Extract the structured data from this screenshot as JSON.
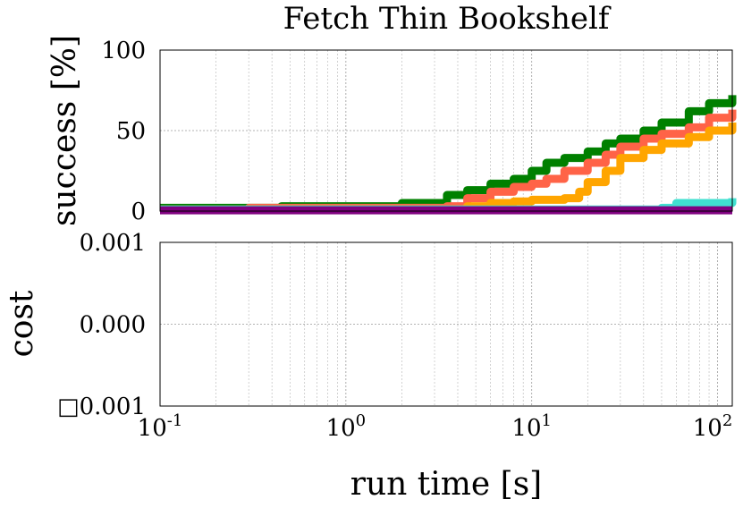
{
  "chart_data": [
    {
      "type": "line",
      "title": "Fetch Thin Bookshelf",
      "xlabel": "",
      "ylabel": "success [%]",
      "xscale": "log",
      "xlim": [
        0.1,
        120
      ],
      "ylim": [
        0,
        100
      ],
      "yticks": [
        "0",
        "50",
        "100"
      ],
      "grid": true,
      "series": [
        {
          "color": "#008000",
          "x": [
            0.1,
            0.45,
            1.3,
            2.0,
            3.5,
            4.5,
            6.0,
            8.0,
            10.0,
            12.0,
            15.0,
            20.0,
            25.0,
            30.0,
            40.0,
            50.0,
            70.0,
            90.0,
            120.0
          ],
          "values": [
            2,
            3,
            3,
            5,
            10,
            13,
            17,
            20,
            25,
            30,
            33,
            37,
            42,
            45,
            50,
            55,
            62,
            67,
            72
          ]
        },
        {
          "color": "#ff6347",
          "x": [
            0.1,
            0.3,
            2.0,
            3.5,
            4.5,
            6.0,
            8.0,
            10.0,
            12.0,
            15.0,
            20.0,
            25.0,
            30.0,
            40.0,
            50.0,
            70.0,
            90.0,
            120.0
          ],
          "values": [
            1,
            2,
            2,
            3,
            8,
            12,
            15,
            17,
            20,
            25,
            30,
            35,
            40,
            45,
            48,
            52,
            58,
            63
          ]
        },
        {
          "color": "#ffa500",
          "x": [
            0.1,
            3.5,
            4.5,
            6.0,
            8.0,
            10.0,
            15.0,
            18.0,
            20.0,
            25.0,
            30.0,
            40.0,
            50.0,
            70.0,
            90.0,
            120.0
          ],
          "values": [
            1,
            1,
            3,
            5,
            6,
            7,
            8,
            12,
            18,
            25,
            33,
            38,
            42,
            46,
            50,
            55
          ]
        },
        {
          "color": "#40e0d0",
          "x": [
            0.1,
            40.0,
            50.0,
            60.0,
            120.0
          ],
          "values": [
            1,
            1,
            2,
            5,
            8
          ]
        },
        {
          "color": "#800080",
          "x": [
            0.1,
            120.0
          ],
          "values": [
            0.5,
            0.5
          ]
        }
      ]
    },
    {
      "type": "line",
      "title": "",
      "xlabel": "run time [s]",
      "ylabel": "cost",
      "xscale": "log",
      "xlim": [
        0.1,
        120
      ],
      "ylim": [
        -0.001,
        0.001
      ],
      "yticks": [
        "0.001",
        "0.000",
        "□0.001"
      ],
      "xticks": [
        {
          "base": "10",
          "exp": "-1"
        },
        {
          "base": "10",
          "exp": "0"
        },
        {
          "base": "10",
          "exp": "1"
        },
        {
          "base": "10",
          "exp": "2"
        }
      ],
      "grid": true,
      "series": []
    }
  ]
}
